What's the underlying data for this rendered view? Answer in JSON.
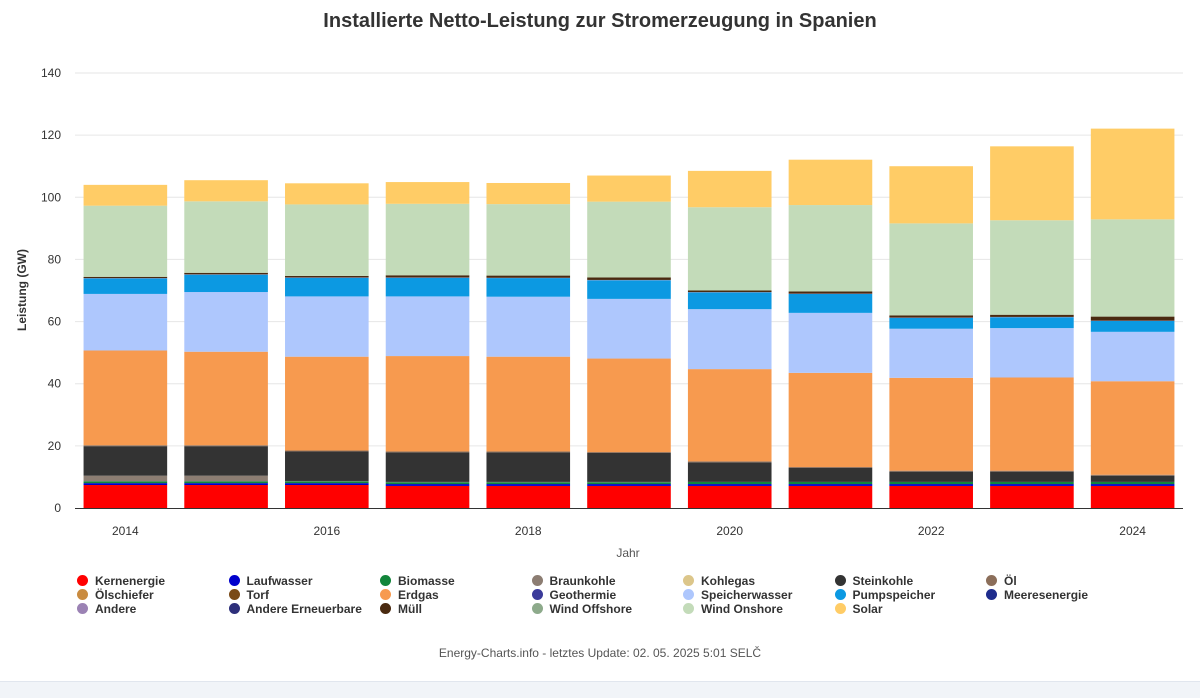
{
  "chart_data": {
    "type": "bar",
    "stacked": true,
    "title": "Installierte Netto-Leistung zur Stromerzeugung in Spanien",
    "xlabel": "Jahr",
    "ylabel": "Leistung (GW)",
    "ylim": [
      0,
      140
    ],
    "yticks": [
      "0",
      "20",
      "40",
      "60",
      "80",
      "100",
      "120",
      "140"
    ],
    "categories": [
      "2014",
      "2015",
      "2016",
      "2017",
      "2018",
      "2019",
      "2020",
      "2021",
      "2022",
      "2023",
      "2024"
    ],
    "xtick_labels": [
      "2014",
      "2016",
      "2018",
      "2020",
      "2022",
      "2024"
    ],
    "legend_position": "bottom",
    "grid": true,
    "series": [
      {
        "name": "Kernenergie",
        "color": "#ff0000",
        "values": [
          7.4,
          7.4,
          7.4,
          7.1,
          7.1,
          7.1,
          7.1,
          7.1,
          7.1,
          7.1,
          7.1
        ]
      },
      {
        "name": "Laufwasser",
        "color": "#0000cc",
        "values": [
          0.6,
          0.6,
          0.6,
          0.6,
          0.6,
          0.6,
          0.6,
          0.6,
          0.6,
          0.6,
          0.6
        ]
      },
      {
        "name": "Biomasse",
        "color": "#12853a",
        "values": [
          0.6,
          0.6,
          0.6,
          0.6,
          0.6,
          0.6,
          0.7,
          0.7,
          0.7,
          0.7,
          0.7
        ]
      },
      {
        "name": "Braunkohle",
        "color": "#8c7d72",
        "values": [
          1.8,
          1.8,
          0.1,
          0.1,
          0.1,
          0.1,
          0.0,
          0.0,
          0.0,
          0.0,
          0.0
        ]
      },
      {
        "name": "Kohlegas",
        "color": "#dcc68a",
        "values": [
          0.0,
          0.0,
          0.0,
          0.0,
          0.0,
          0.0,
          0.0,
          0.0,
          0.0,
          0.0,
          0.0
        ]
      },
      {
        "name": "Steinkohle",
        "color": "#333333",
        "values": [
          9.5,
          9.5,
          9.5,
          9.5,
          9.5,
          9.3,
          6.3,
          4.5,
          3.3,
          3.3,
          2.0
        ]
      },
      {
        "name": "Öl",
        "color": "#8b6e5a",
        "values": [
          0.3,
          0.3,
          0.3,
          0.3,
          0.3,
          0.3,
          0.3,
          0.3,
          0.3,
          0.3,
          0.3
        ]
      },
      {
        "name": "Ölschiefer",
        "color": "#c98b40",
        "values": [
          0.0,
          0.0,
          0.0,
          0.0,
          0.0,
          0.0,
          0.0,
          0.0,
          0.0,
          0.0,
          0.0
        ]
      },
      {
        "name": "Torf",
        "color": "#7a4a17",
        "values": [
          0.0,
          0.0,
          0.0,
          0.0,
          0.0,
          0.0,
          0.0,
          0.0,
          0.0,
          0.0,
          0.0
        ]
      },
      {
        "name": "Erdgas",
        "color": "#f79a4f",
        "values": [
          30.5,
          30.1,
          30.2,
          30.7,
          30.5,
          30.1,
          29.7,
          30.3,
          29.9,
          30.0,
          30.1
        ]
      },
      {
        "name": "Geothermie",
        "color": "#3b3b9a",
        "values": [
          0.0,
          0.0,
          0.0,
          0.0,
          0.0,
          0.0,
          0.0,
          0.0,
          0.0,
          0.0,
          0.0
        ]
      },
      {
        "name": "Speicherwasser",
        "color": "#aec7fd",
        "values": [
          18.2,
          19.2,
          19.4,
          19.2,
          19.3,
          19.2,
          19.3,
          19.3,
          15.8,
          15.9,
          15.9
        ]
      },
      {
        "name": "Pumpspeicher",
        "color": "#0c99e2",
        "values": [
          5.0,
          5.6,
          6.0,
          6.0,
          6.0,
          6.0,
          5.4,
          6.1,
          3.5,
          3.5,
          3.5
        ]
      },
      {
        "name": "Meeresenergie",
        "color": "#1e2c8c",
        "values": [
          0.0,
          0.0,
          0.0,
          0.0,
          0.0,
          0.0,
          0.0,
          0.0,
          0.0,
          0.0,
          0.0
        ]
      },
      {
        "name": "Andere",
        "color": "#9b82b4",
        "values": [
          0.1,
          0.1,
          0.1,
          0.1,
          0.1,
          0.1,
          0.1,
          0.1,
          0.1,
          0.1,
          0.1
        ]
      },
      {
        "name": "Andere Erneuerbare",
        "color": "#2d2f7a",
        "values": [
          0.0,
          0.0,
          0.0,
          0.0,
          0.0,
          0.0,
          0.0,
          0.0,
          0.0,
          0.0,
          0.0
        ]
      },
      {
        "name": "Müll",
        "color": "#4a2a10",
        "values": [
          0.4,
          0.5,
          0.5,
          0.7,
          0.7,
          0.8,
          0.5,
          0.7,
          0.7,
          0.7,
          1.3
        ]
      },
      {
        "name": "Wind Offshore",
        "color": "#8daa8b",
        "values": [
          0.0,
          0.0,
          0.0,
          0.0,
          0.0,
          0.0,
          0.0,
          0.0,
          0.0,
          0.0,
          0.0
        ]
      },
      {
        "name": "Wind Onshore",
        "color": "#c3dbb9",
        "values": [
          22.9,
          23.0,
          23.0,
          23.0,
          23.0,
          24.4,
          26.8,
          27.8,
          29.6,
          30.4,
          31.3
        ]
      },
      {
        "name": "Solar",
        "color": "#ffcc66",
        "values": [
          6.7,
          6.8,
          6.8,
          7.0,
          6.8,
          8.4,
          11.7,
          14.6,
          18.4,
          23.8,
          29.2
        ]
      }
    ]
  },
  "legend": {
    "rows": [
      [
        "Kernenergie",
        "Laufwasser",
        "Biomasse",
        "Braunkohle",
        "Kohlegas",
        "Steinkohle",
        "Öl"
      ],
      [
        "Ölschiefer",
        "Torf",
        "Erdgas",
        "Geothermie",
        "Speicherwasser",
        "Pumpspeicher",
        "Meeresenergie"
      ],
      [
        "Andere",
        "Andere Erneuerbare",
        "Müll",
        "Wind Offshore",
        "Wind Onshore",
        "Solar"
      ]
    ]
  },
  "footer": {
    "credit": "Energy-Charts.info - letztes Update: 02. 05. 2025 5:01 SELČ"
  }
}
